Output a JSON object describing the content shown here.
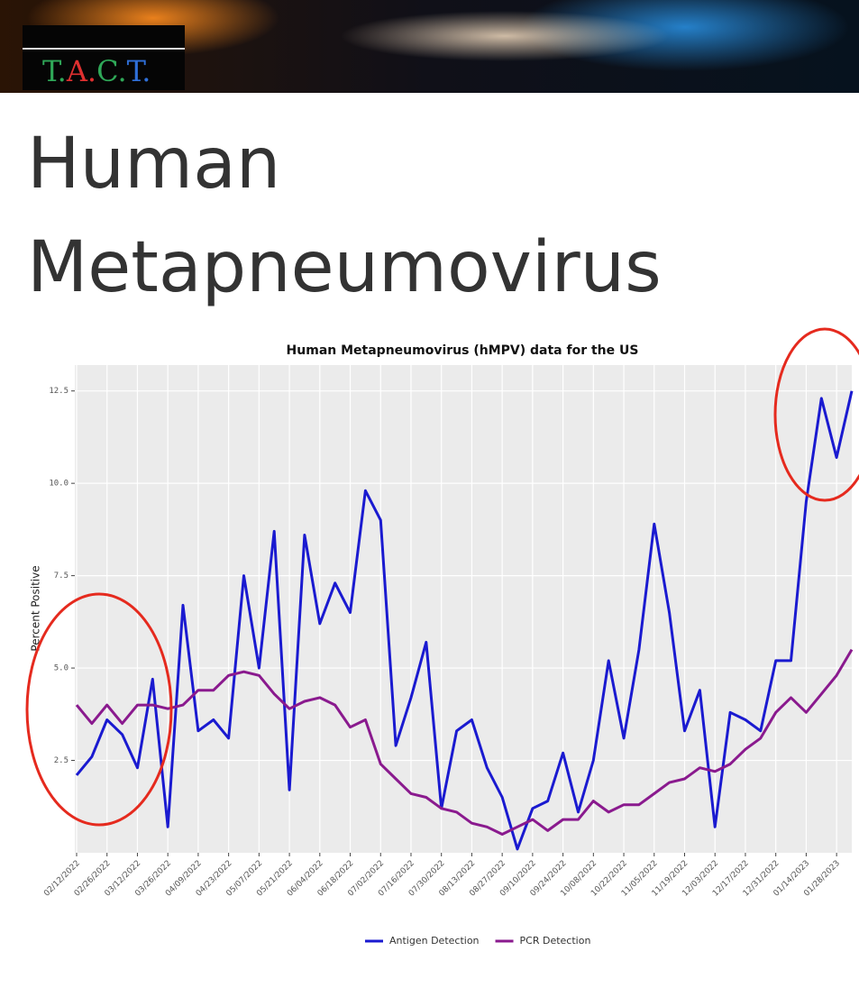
{
  "header": {
    "logo": [
      {
        "text": "T.",
        "color": "#2fa858"
      },
      {
        "text": "A.",
        "color": "#e03030"
      },
      {
        "text": "C.",
        "color": "#2fa858"
      },
      {
        "text": "T.",
        "color": "#2f6fd8"
      }
    ]
  },
  "heading": "Human Metapneumovirus",
  "chart_data": {
    "type": "line",
    "title": "Human Metapneumovirus (hMPV) data for the US",
    "y_label": "Percent Positive",
    "x": [
      "02/12/2022",
      "02/19/2022",
      "02/26/2022",
      "03/05/2022",
      "03/12/2022",
      "03/19/2022",
      "03/26/2022",
      "04/02/2022",
      "04/09/2022",
      "04/16/2022",
      "04/23/2022",
      "04/30/2022",
      "05/07/2022",
      "05/14/2022",
      "05/21/2022",
      "05/28/2022",
      "06/04/2022",
      "06/11/2022",
      "06/18/2022",
      "06/25/2022",
      "07/02/2022",
      "07/09/2022",
      "07/16/2022",
      "07/23/2022",
      "07/30/2022",
      "08/06/2022",
      "08/13/2022",
      "08/20/2022",
      "08/27/2022",
      "09/03/2022",
      "09/10/2022",
      "09/17/2022",
      "09/24/2022",
      "10/01/2022",
      "10/08/2022",
      "10/15/2022",
      "10/22/2022",
      "10/29/2022",
      "11/05/2022",
      "11/12/2022",
      "11/19/2022",
      "11/26/2022",
      "12/03/2022",
      "12/10/2022",
      "12/17/2022",
      "12/24/2022",
      "12/31/2022",
      "01/07/2023",
      "01/14/2023",
      "01/21/2023",
      "01/28/2023",
      "02/04/2023"
    ],
    "series": [
      {
        "name": "Antigen Detection",
        "color": "#1a1ad0",
        "values": [
          2.1,
          2.6,
          3.6,
          3.2,
          2.3,
          4.7,
          0.7,
          6.7,
          3.3,
          3.6,
          3.1,
          7.5,
          5.0,
          8.7,
          1.7,
          8.6,
          6.2,
          7.3,
          6.5,
          9.8,
          9.0,
          2.9,
          4.2,
          5.7,
          1.2,
          3.3,
          3.6,
          2.3,
          1.5,
          0.1,
          1.2,
          1.4,
          2.7,
          1.1,
          2.5,
          5.2,
          3.1,
          5.5,
          8.9,
          6.5,
          3.3,
          4.4,
          0.7,
          3.8,
          3.6,
          3.3,
          5.2,
          5.2,
          9.5,
          12.3,
          10.7,
          12.5
        ]
      },
      {
        "name": "PCR Detection",
        "color": "#8a1a8e",
        "values": [
          4.0,
          3.5,
          4.0,
          3.5,
          4.0,
          4.0,
          3.9,
          4.0,
          4.4,
          4.4,
          4.8,
          4.9,
          4.8,
          4.3,
          3.9,
          4.1,
          4.2,
          4.0,
          3.4,
          3.6,
          2.4,
          2.0,
          1.6,
          1.5,
          1.2,
          1.1,
          0.8,
          0.7,
          0.5,
          0.7,
          0.9,
          0.6,
          0.9,
          0.9,
          1.4,
          1.1,
          1.3,
          1.3,
          1.6,
          1.9,
          2.0,
          2.3,
          2.2,
          2.4,
          2.8,
          3.1,
          3.8,
          4.2,
          3.8,
          4.3,
          4.8,
          5.5
        ]
      }
    ],
    "xlim": [
      "02/12/2022",
      "02/04/2023"
    ],
    "xticks": [
      "02/12/2022",
      "02/26/2022",
      "03/12/2022",
      "03/26/2022",
      "04/09/2022",
      "04/23/2022",
      "05/07/2022",
      "05/21/2022",
      "06/04/2022",
      "06/18/2022",
      "07/02/2022",
      "07/16/2022",
      "07/30/2022",
      "08/13/2022",
      "08/27/2022",
      "09/10/2022",
      "09/24/2022",
      "10/08/2022",
      "10/22/2022",
      "11/05/2022",
      "11/19/2022",
      "12/03/2022",
      "12/17/2022",
      "12/31/2022",
      "01/14/2023",
      "01/28/2023"
    ],
    "ylim": [
      0,
      13.2
    ],
    "yticks": [
      2.5,
      {
        "value": 5,
        "label": "5.0"
      },
      7.5,
      {
        "value": 10,
        "label": "10.0"
      },
      12.5
    ],
    "grid": true,
    "legend": "bottom"
  }
}
